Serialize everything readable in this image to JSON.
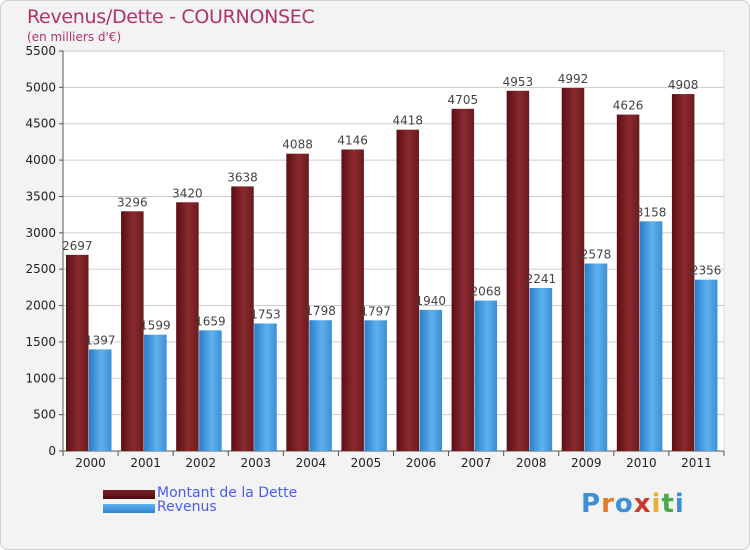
{
  "chart_data": {
    "type": "bar",
    "title": "Revenus/Dette - COURNONSEC",
    "subtitle": "(en milliers d'€)",
    "categories": [
      "2000",
      "2001",
      "2002",
      "2003",
      "2004",
      "2005",
      "2006",
      "2007",
      "2008",
      "2009",
      "2010",
      "2011"
    ],
    "series": [
      {
        "name": "Montant de la Dette",
        "color": "#7a1f24",
        "values": [
          2697,
          3296,
          3420,
          3638,
          4088,
          4146,
          4418,
          4705,
          4953,
          4992,
          4626,
          4908
        ]
      },
      {
        "name": "Revenus",
        "color": "#3f95da",
        "values": [
          1397,
          1599,
          1659,
          1753,
          1798,
          1797,
          1940,
          2068,
          2241,
          2578,
          3158,
          2356
        ]
      }
    ],
    "ylim": [
      0,
      5500
    ],
    "yticks": [
      0,
      500,
      1000,
      1500,
      2000,
      2500,
      3000,
      3500,
      4000,
      4500,
      5000,
      5500
    ],
    "xlabel": "",
    "ylabel": "",
    "grid": true,
    "legend": "bottom-left"
  },
  "logo": {
    "text": "Proxiti"
  }
}
